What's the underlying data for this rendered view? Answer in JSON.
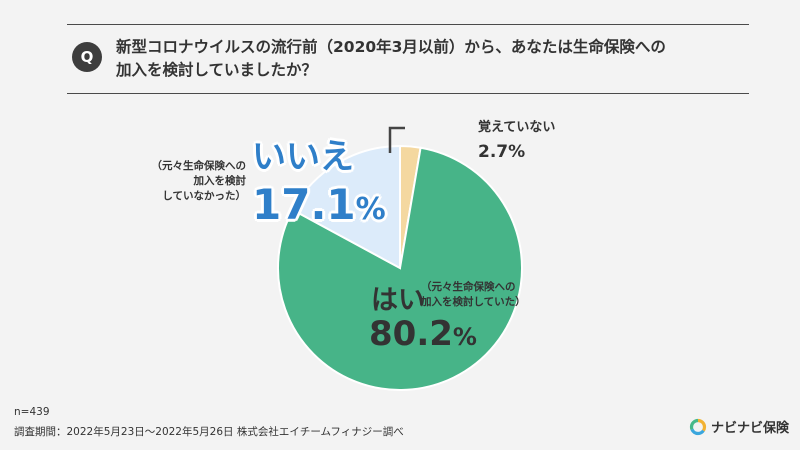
{
  "question": {
    "badge": "Q",
    "line1": "新型コロナウイルスの流行前（2020年3月以前）から、あなたは生命保険への",
    "line2": "加入を検討していましたか？"
  },
  "chart_data": {
    "type": "pie",
    "title": "新型コロナウイルスの流行前（2020年3月以前）から、あなたは生命保険への加入を検討していましたか？",
    "start": "top",
    "direction": "clockwise",
    "slices": [
      {
        "label": "覚えていない",
        "value": 2.7,
        "value_label": "2.7%",
        "color": "#f4d8a0"
      },
      {
        "label": "はい",
        "value": 80.2,
        "value_label": "80.2%",
        "note": "（元々生命保険への加入を検討していた）",
        "color": "#47b488"
      },
      {
        "label": "いいえ",
        "value": 17.1,
        "value_label": "17.1%",
        "note_lines": [
          "（元々生命保険への",
          "加入を検討",
          "していなかった）"
        ],
        "color": "#dcebfa"
      }
    ]
  },
  "labels": {
    "no_big": "いいえ",
    "no_pct": "17.1",
    "no_note1": "（元々生命保険への",
    "no_note2": "加入を検討",
    "no_note3": "していなかった）",
    "yes_big": "はい",
    "yes_note1": "（元々生命保険への",
    "yes_note2": "加入を検討していた）",
    "yes_pct": "80.2",
    "pct_sign": "%",
    "dk_label": "覚えていない",
    "dk_pct": "2.7%"
  },
  "footer": {
    "n": "n=439",
    "period": "調査期間：2022年5月23日〜2022年5月26日 株式会社エイチームフィナジー調べ"
  },
  "brand": {
    "name": "ナビナビ保険"
  }
}
